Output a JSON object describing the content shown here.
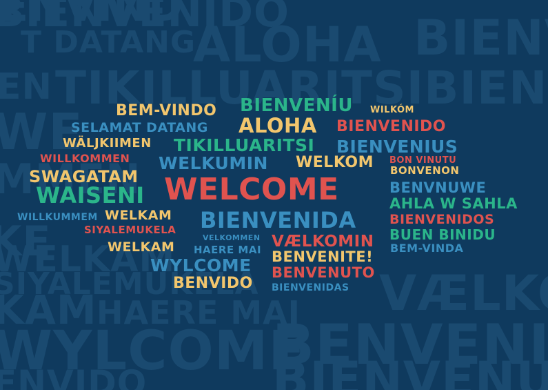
{
  "colors": {
    "background": "#0f3a5e",
    "background_words": "#1a4a70",
    "yellow": "#f2c66d",
    "red": "#e0534f",
    "green": "#2bb58a",
    "blue": "#3a8fc0"
  },
  "background_words": [
    "BIENVENIDO",
    "ENVIND",
    "T DATANG",
    "ALOHA",
    "BIENV",
    "EN",
    "TIKILLUARITSIBIENVE",
    "WE",
    "MMEN",
    "KE",
    "WELKAM",
    "SIYALEMUKELA",
    "VÆLKOMIN",
    "KAM",
    "HAERE MAI",
    "WYLCOME",
    "BENVENITE",
    "ENVIDO",
    "BIENVENUTO"
  ],
  "words": [
    {
      "id": "bem-vindo",
      "text": "BEM-VINDO",
      "color": "yellow"
    },
    {
      "id": "bienveniu",
      "text": "BIENVENÍU",
      "color": "green"
    },
    {
      "id": "wilkom",
      "text": "WILKÓM",
      "color": "yellow"
    },
    {
      "id": "selamat-datang",
      "text": "SELAMAT DATANG",
      "color": "blue"
    },
    {
      "id": "aloha",
      "text": "ALOHA",
      "color": "yellow"
    },
    {
      "id": "bienvenido",
      "text": "BIENVENIDO",
      "color": "red"
    },
    {
      "id": "waljkiimen",
      "text": "WÄLJKIIMEN",
      "color": "yellow"
    },
    {
      "id": "tikilluaritsi",
      "text": "TIKILLUARITSI",
      "color": "green"
    },
    {
      "id": "bienvenius",
      "text": "BIENVENIUS",
      "color": "blue"
    },
    {
      "id": "willkommen",
      "text": "WILLKOMMEN",
      "color": "red"
    },
    {
      "id": "welkumin",
      "text": "WELKUMIN",
      "color": "blue"
    },
    {
      "id": "welkom",
      "text": "WELKOM",
      "color": "yellow"
    },
    {
      "id": "bon-vinutu",
      "text": "BON VINUTU",
      "color": "red"
    },
    {
      "id": "swagatam",
      "text": "SWAGATAM",
      "color": "yellow"
    },
    {
      "id": "bonvenon",
      "text": "BONVENON",
      "color": "yellow"
    },
    {
      "id": "welcome",
      "text": "WELCOME",
      "color": "red"
    },
    {
      "id": "waiseni",
      "text": "WAISENI",
      "color": "green"
    },
    {
      "id": "benvnuwe",
      "text": "BENVNUWE",
      "color": "blue"
    },
    {
      "id": "ahla-w-sahla",
      "text": "AHLA W SAHLA",
      "color": "green"
    },
    {
      "id": "willkummem",
      "text": "WILLKUMMEM",
      "color": "blue"
    },
    {
      "id": "welkam-1",
      "text": "WELKAM",
      "color": "yellow"
    },
    {
      "id": "bienvenida",
      "text": "BIENVENIDA",
      "color": "blue"
    },
    {
      "id": "bienvenidos",
      "text": "BIENVENIDOS",
      "color": "red"
    },
    {
      "id": "siyalemukela",
      "text": "SIYALEMUKELA",
      "color": "red"
    },
    {
      "id": "buen-binidu",
      "text": "BUEN BINIDU",
      "color": "green"
    },
    {
      "id": "velkommen",
      "text": "VELKOMMEN",
      "color": "blue"
    },
    {
      "id": "vaelkomin",
      "text": "VÆLKOMIN",
      "color": "red"
    },
    {
      "id": "welkam-2",
      "text": "WELKAM",
      "color": "yellow"
    },
    {
      "id": "haere-mai",
      "text": "HAERE MAI",
      "color": "blue"
    },
    {
      "id": "bem-vinda",
      "text": "BEM-VINDA",
      "color": "blue"
    },
    {
      "id": "wylcome",
      "text": "WYLCOME",
      "color": "blue"
    },
    {
      "id": "benvenite",
      "text": "BENVENITE!",
      "color": "yellow"
    },
    {
      "id": "benvenuto",
      "text": "BENVENUTO",
      "color": "red"
    },
    {
      "id": "benvido",
      "text": "BENVIDO",
      "color": "yellow"
    },
    {
      "id": "bienvenidas",
      "text": "BIENVENIDAS",
      "color": "blue"
    }
  ]
}
